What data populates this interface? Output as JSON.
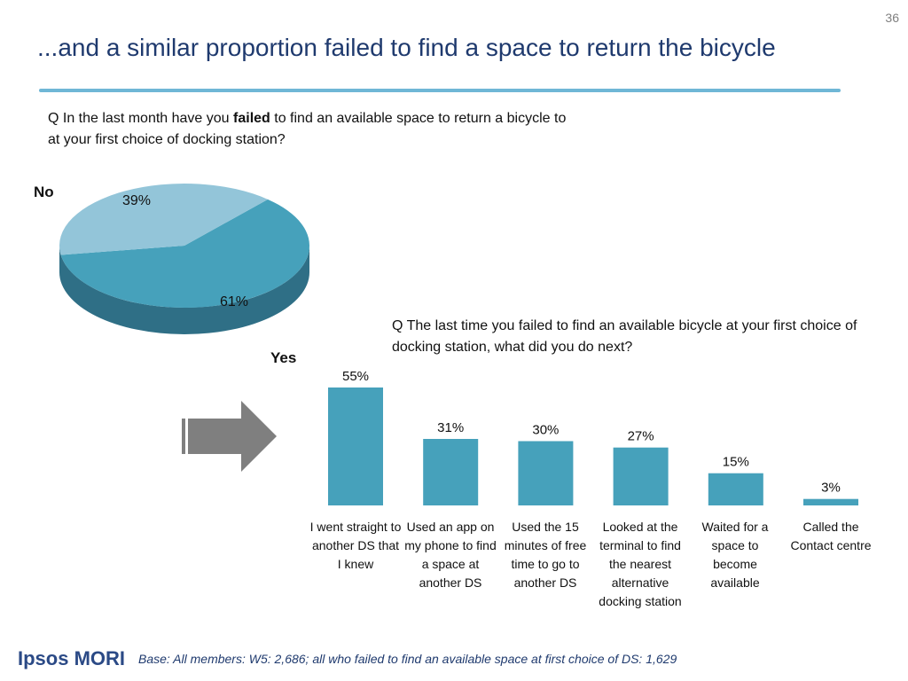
{
  "page_number": "36",
  "title": "...and a similar proportion failed to find a space to return the bicycle",
  "question1": {
    "prefix": "Q In the last month have you ",
    "bold": "failed",
    "suffix": " to find an available space to return a bicycle to at your first choice of docking station?"
  },
  "question2": "Q The last time you failed to find an available bicycle at your first choice of docking station, what did you do next?",
  "footer": {
    "logo": "Ipsos MORI",
    "base": "Base: All members: W5: 2,686; all who failed to find an available space at first choice of DS: 1,629"
  },
  "colors": {
    "pie_no": "#93c5d9",
    "pie_yes": "#46a1bb",
    "pie_side": "#2f6f86",
    "bar": "#46a1bb",
    "arrow": "#7f7f7f"
  },
  "chart_data": [
    {
      "type": "pie",
      "slices": [
        {
          "label": "No",
          "value": 39,
          "value_label": "39%"
        },
        {
          "label": "Yes",
          "value": 61,
          "value_label": "61%"
        }
      ]
    },
    {
      "type": "bar",
      "categories": [
        "I went straight to another DS that I knew",
        "Used an app on my phone to find a space at another DS",
        "Used the 15 minutes of free time to go to another DS",
        "Looked at the terminal to find the nearest alternative docking station",
        "Waited for a space to become available",
        "Called the Contact centre"
      ],
      "values": [
        55,
        31,
        30,
        27,
        15,
        3
      ],
      "value_labels": [
        "55%",
        "31%",
        "30%",
        "27%",
        "15%",
        "3%"
      ],
      "ylim": [
        0,
        55
      ]
    }
  ]
}
